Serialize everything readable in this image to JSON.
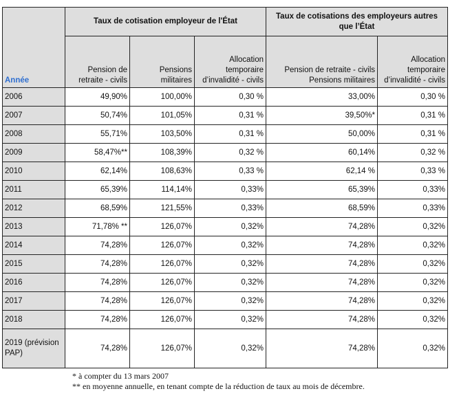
{
  "headers": {
    "year": "Année",
    "group_state": "Taux de cotisation employeur de l'État",
    "group_other": "Taux de cotisations des employeurs autres que l’État",
    "columns": [
      "Pension de retraite - civils",
      "Pensions militaires",
      "Allocation temporaire d’invalidité - civils",
      "Pension de retraite - civils Pensions militaires",
      "Allocation temporaire d’invalidité - civils"
    ]
  },
  "rows": [
    [
      "2006",
      "49,90%",
      "100,00%",
      "0,30 %",
      "33,00%",
      "0,30 %"
    ],
    [
      "2007",
      "50,74%",
      "101,05%",
      "0,31 %",
      "39,50%*",
      "0,31 %"
    ],
    [
      "2008",
      "55,71%",
      "103,50%",
      "0,31 %",
      "50,00%",
      "0,31 %"
    ],
    [
      "2009",
      "58,47%**",
      "108,39%",
      "0,32 %",
      "60,14%",
      "0,32 %"
    ],
    [
      "2010",
      "62,14%",
      "108,63%",
      "0,33 %",
      "62,14 %",
      "0,33 %"
    ],
    [
      "2011",
      "65,39%",
      "114,14%",
      "0,33%",
      "65,39%",
      "0,33%"
    ],
    [
      "2012",
      "68,59%",
      "121,55%",
      "0,33%",
      "68,59%",
      "0,33%"
    ],
    [
      "2013",
      "71,78% **",
      "126,07%",
      "0,32%",
      "74,28%",
      "0,32%"
    ],
    [
      "2014",
      "74,28%",
      "126,07%",
      "0,32%",
      "74,28%",
      "0,32%"
    ],
    [
      "2015",
      "74,28%",
      "126,07%",
      "0,32%",
      "74,28%",
      "0,32%"
    ],
    [
      "2016",
      "74,28%",
      "126,07%",
      "0,32%",
      "74,28%",
      "0,32%"
    ],
    [
      "2017",
      "74,28%",
      "126,07%",
      "0,32%",
      "74,28%",
      "0,32%"
    ],
    [
      "2018",
      "74,28%",
      "126,07%",
      "0,32%",
      "74,28%",
      "0,32%"
    ],
    [
      "2019 (prévision PAP)",
      "74,28%",
      "126,07%",
      "0,32%",
      "74,28%",
      "0,32%"
    ]
  ],
  "footnotes": [
    "* à compter du 13 mars 2007",
    "** en moyenne annuelle, en tenant compte de la réduction de taux au mois de décembre."
  ]
}
